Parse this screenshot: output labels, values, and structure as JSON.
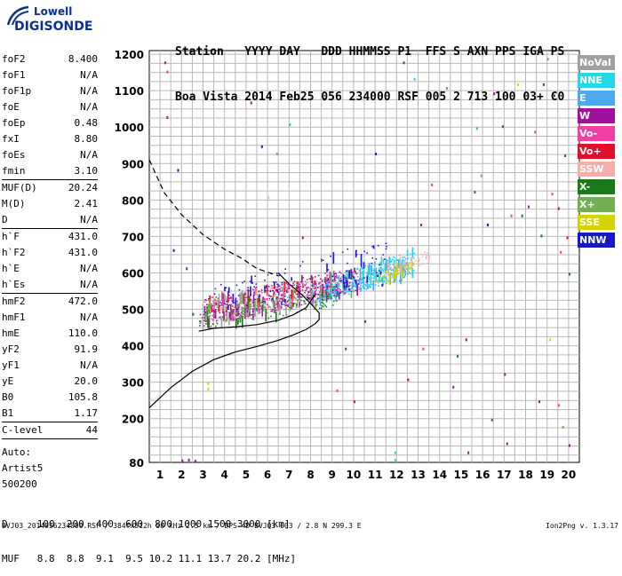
{
  "logo": {
    "line1": "Lowell",
    "line2": "DIGISONDE"
  },
  "header": {
    "line1": "Station   YYYY DAY   DDD HHMMSS P1  FFS S AXN PPS IGA PS",
    "line2": "Boa Vista 2014 Feb25 056 234000 RSF 005 2 713 100 03+ C0"
  },
  "params": [
    {
      "name": "foF2",
      "value": "8.400",
      "sep": false
    },
    {
      "name": "foF1",
      "value": "N/A",
      "sep": false
    },
    {
      "name": "foF1p",
      "value": "N/A",
      "sep": false
    },
    {
      "name": "foE",
      "value": "N/A",
      "sep": false
    },
    {
      "name": "foEp",
      "value": "0.48",
      "sep": false
    },
    {
      "name": "fxI",
      "value": "8.80",
      "sep": false
    },
    {
      "name": "foEs",
      "value": "N/A",
      "sep": false
    },
    {
      "name": "fmin",
      "value": "3.10",
      "sep": true
    },
    {
      "name": "MUF(D)",
      "value": "20.24",
      "sep": false
    },
    {
      "name": "M(D)",
      "value": "2.41",
      "sep": false
    },
    {
      "name": "D",
      "value": "N/A",
      "sep": true
    },
    {
      "name": "h`F",
      "value": "431.0",
      "sep": false
    },
    {
      "name": "h`F2",
      "value": "431.0",
      "sep": false
    },
    {
      "name": "h`E",
      "value": "N/A",
      "sep": false
    },
    {
      "name": "h`Es",
      "value": "N/A",
      "sep": true
    },
    {
      "name": "hmF2",
      "value": "472.0",
      "sep": false
    },
    {
      "name": "hmF1",
      "value": "N/A",
      "sep": false
    },
    {
      "name": "hmE",
      "value": "110.0",
      "sep": false
    },
    {
      "name": "yF2",
      "value": "91.9",
      "sep": false
    },
    {
      "name": "yF1",
      "value": "N/A",
      "sep": false
    },
    {
      "name": "yE",
      "value": "20.0",
      "sep": false
    },
    {
      "name": "B0",
      "value": "105.8",
      "sep": false
    },
    {
      "name": "B1",
      "value": "1.17",
      "sep": true
    },
    {
      "name": "C-level",
      "value": "44",
      "sep": true
    }
  ],
  "extra": {
    "auto": "Auto:",
    "artist": "Artist5",
    "code": "500200"
  },
  "legend": [
    {
      "label": "NoVal",
      "color": "#a0a0a0"
    },
    {
      "label": "NNE",
      "color": "#22d8e8"
    },
    {
      "label": "E",
      "color": "#4ea8f0"
    },
    {
      "label": "W",
      "color": "#a0109a"
    },
    {
      "label": "Vo-",
      "color": "#f040a8"
    },
    {
      "label": "Vo+",
      "color": "#e0102a"
    },
    {
      "label": "SSW",
      "color": "#f4b0a8"
    },
    {
      "label": "X-",
      "color": "#1a7a1a"
    },
    {
      "label": "X+",
      "color": "#70b050"
    },
    {
      "label": "SSE",
      "color": "#d4d400"
    },
    {
      "label": "NNW",
      "color": "#1818c8"
    }
  ],
  "dmuf": {
    "d_line": "D     100  200  400  600  800 1000 1500 3000 [km]",
    "muf_line": "MUF   8.8  8.8  9.1  9.5 10.2 11.1 13.7 20.2 [MHz]"
  },
  "footer": "BVJ03_2014056234000.RSF / 384fx512h 50 kHz 2.5 km / DPS-4D BVJ03 003 / 2.8 N 299.3 E",
  "version": "Ion2Png v. 1.3.17",
  "chart_data": {
    "type": "scatter",
    "xlabel": "",
    "ylabel": "",
    "xlim": [
      0.5,
      20.5
    ],
    "ylim": [
      80,
      1210
    ],
    "xticks": [
      "1",
      "2",
      "3",
      "4",
      "5",
      "6",
      "7",
      "8",
      "9",
      "10",
      "11",
      "12",
      "13",
      "14",
      "15",
      "16",
      "17",
      "18",
      "19",
      "20"
    ],
    "yticks": [
      "80",
      "200",
      "300",
      "400",
      "500",
      "600",
      "700",
      "800",
      "900",
      "1000",
      "1100",
      "1200"
    ],
    "grid": true,
    "series": [
      {
        "name": "Profile (solid)",
        "style": "solid",
        "color": "#000000",
        "x": [
          0.5,
          1.5,
          2.5,
          3.5,
          4.5,
          5.5,
          6.5,
          7.2,
          7.8,
          8.2,
          8.4,
          8.4,
          8.1,
          7.6,
          7.0,
          6.5
        ],
        "y": [
          230,
          285,
          330,
          362,
          383,
          398,
          415,
          430,
          445,
          460,
          472,
          490,
          510,
          540,
          570,
          600
        ]
      },
      {
        "name": "Dashed extrapolation",
        "style": "dashed",
        "color": "#000000",
        "x": [
          0.5,
          1.2,
          2.0,
          3.0,
          4.0,
          4.8,
          5.5,
          6.5
        ],
        "y": [
          910,
          820,
          760,
          705,
          665,
          640,
          612,
          592
        ]
      },
      {
        "name": "Trace O",
        "style": "solid",
        "color": "#000000",
        "x": [
          2.8,
          3.5,
          4.5,
          5.5,
          6.5,
          7.2,
          7.8,
          8.2
        ],
        "y": [
          440,
          448,
          452,
          458,
          470,
          485,
          505,
          540
        ]
      }
    ],
    "echo_bands": [
      {
        "name": "NNE",
        "color": "#22d8e8",
        "x0": 8.5,
        "y0": 520,
        "x1": 12.8,
        "y1": 660,
        "count": 280
      },
      {
        "name": "E",
        "color": "#4ea8f0",
        "x0": 8.0,
        "y0": 510,
        "x1": 12.5,
        "y1": 640,
        "count": 220
      },
      {
        "name": "W",
        "color": "#a0109a",
        "x0": 2.8,
        "y0": 450,
        "x1": 10.2,
        "y1": 610,
        "count": 340
      },
      {
        "name": "Vo-",
        "color": "#f040a8",
        "x0": 3.0,
        "y0": 460,
        "x1": 9.5,
        "y1": 600,
        "count": 120
      },
      {
        "name": "Vo+",
        "color": "#e0102a",
        "x0": 3.0,
        "y0": 470,
        "x1": 9.0,
        "y1": 600,
        "count": 90
      },
      {
        "name": "SSW",
        "color": "#f4b0a8",
        "x0": 11.5,
        "y0": 580,
        "x1": 13.5,
        "y1": 660,
        "count": 60
      },
      {
        "name": "X-",
        "color": "#1a7a1a",
        "x0": 2.8,
        "y0": 440,
        "x1": 9.5,
        "y1": 560,
        "count": 110
      },
      {
        "name": "X+",
        "color": "#70b050",
        "x0": 3.0,
        "y0": 450,
        "x1": 10.0,
        "y1": 600,
        "count": 100
      },
      {
        "name": "SSE",
        "color": "#d4d400",
        "x0": 11.0,
        "y0": 560,
        "x1": 12.8,
        "y1": 640,
        "count": 50
      },
      {
        "name": "NNW",
        "color": "#1818c8",
        "x0": 3.5,
        "y0": 450,
        "x1": 11.5,
        "y1": 690,
        "count": 140
      },
      {
        "name": "NoVal",
        "color": "#a0a0a0",
        "x0": 2.8,
        "y0": 430,
        "x1": 9.5,
        "y1": 610,
        "count": 120
      }
    ],
    "sparse_points": [
      [
        1.2,
        1180,
        "#e0102a"
      ],
      [
        1.3,
        1030,
        "#a0109a"
      ],
      [
        1.3,
        1155,
        "#f040a8"
      ],
      [
        1.6,
        665,
        "#1818c8"
      ],
      [
        1.8,
        885,
        "#1818c8"
      ],
      [
        2.2,
        615,
        "#a0109a"
      ],
      [
        2.5,
        490,
        "#1a7a1a"
      ],
      [
        3.2,
        300,
        "#d4d400"
      ],
      [
        3.2,
        285,
        "#d4d400"
      ],
      [
        5.2,
        1070,
        "#a0109a"
      ],
      [
        5.7,
        950,
        "#1818c8"
      ],
      [
        6.0,
        810,
        "#f4b0a8"
      ],
      [
        6.4,
        930,
        "#70b050"
      ],
      [
        7.0,
        1010,
        "#4ea8f0"
      ],
      [
        7.6,
        700,
        "#a0109a"
      ],
      [
        8.6,
        1080,
        "#a0109a"
      ],
      [
        9.2,
        280,
        "#f040a8"
      ],
      [
        9.6,
        395,
        "#1a7a1a"
      ],
      [
        10.0,
        250,
        "#e0102a"
      ],
      [
        10.5,
        470,
        "#a0109a"
      ],
      [
        11.0,
        930,
        "#1818c8"
      ],
      [
        11.3,
        570,
        "#1818c8"
      ],
      [
        12.3,
        1180,
        "#a0109a"
      ],
      [
        12.8,
        1135,
        "#22d8e8"
      ],
      [
        13.1,
        735,
        "#a0109a"
      ],
      [
        13.6,
        845,
        "#f040a8"
      ],
      [
        14.3,
        1110,
        "#70b050"
      ],
      [
        14.8,
        375,
        "#1a7a1a"
      ],
      [
        15.2,
        420,
        "#a0109a"
      ],
      [
        15.6,
        825,
        "#1a7a1a"
      ],
      [
        15.7,
        1000,
        "#4ea8f0"
      ],
      [
        15.9,
        870,
        "#70b050"
      ],
      [
        16.2,
        735,
        "#1818c8"
      ],
      [
        16.5,
        1095,
        "#a0109a"
      ],
      [
        16.9,
        1005,
        "#1a7a1a"
      ],
      [
        17.0,
        325,
        "#a0109a"
      ],
      [
        17.3,
        760,
        "#f040a8"
      ],
      [
        17.6,
        1120,
        "#d4d400"
      ],
      [
        17.8,
        760,
        "#1a7a1a"
      ],
      [
        18.1,
        785,
        "#a0109a"
      ],
      [
        18.4,
        990,
        "#f040a8"
      ],
      [
        18.7,
        705,
        "#1a7a1a"
      ],
      [
        18.8,
        1120,
        "#a0109a"
      ],
      [
        19.0,
        1190,
        "#70b050"
      ],
      [
        19.2,
        820,
        "#f040a8"
      ],
      [
        19.3,
        1090,
        "#1a7a1a"
      ],
      [
        19.5,
        780,
        "#a0109a"
      ],
      [
        19.6,
        660,
        "#f040a8"
      ],
      [
        19.8,
        925,
        "#1a7a1a"
      ],
      [
        19.9,
        700,
        "#e0102a"
      ],
      [
        19.7,
        180,
        "#70b050"
      ],
      [
        19.5,
        240,
        "#f040a8"
      ],
      [
        18.6,
        250,
        "#a0109a"
      ],
      [
        17.1,
        135,
        "#a0109a"
      ],
      [
        16.4,
        200,
        "#1a7a1a"
      ],
      [
        15.3,
        110,
        "#a0109a"
      ],
      [
        14.6,
        290,
        "#a0109a"
      ],
      [
        13.2,
        395,
        "#f040a8"
      ],
      [
        11.9,
        110,
        "#22d8e8"
      ],
      [
        11.9,
        90,
        "#22d8e8"
      ],
      [
        12.5,
        310,
        "#a0109a"
      ],
      [
        2.0,
        88,
        "#a0109a"
      ],
      [
        2.3,
        90,
        "#a0109a"
      ],
      [
        2.6,
        87,
        "#a0109a"
      ],
      [
        20.0,
        130,
        "#a0109a"
      ],
      [
        20.0,
        600,
        "#1a7a1a"
      ],
      [
        19.1,
        420,
        "#d4d400"
      ]
    ]
  }
}
